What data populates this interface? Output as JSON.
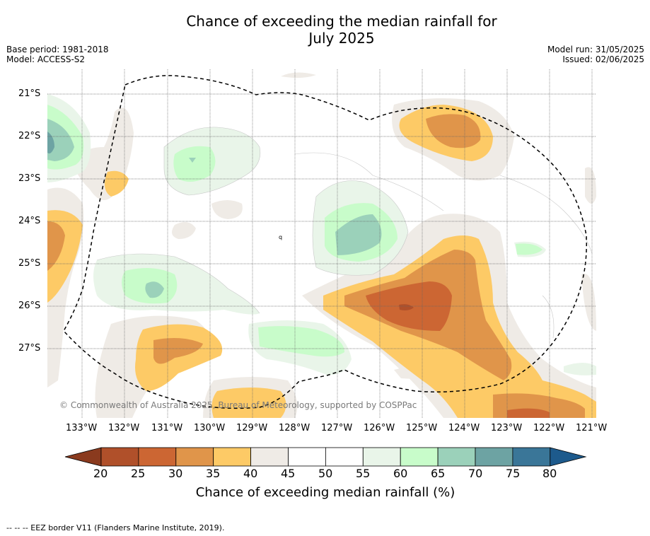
{
  "title_line1": "Chance of exceeding the median rainfall for",
  "title_line2": "July 2025",
  "meta_left": [
    "Base period: 1981-2018",
    "Model: ACCESS-S2"
  ],
  "meta_right": [
    "Model run: 31/05/2025",
    "Issued: 02/06/2025"
  ],
  "lat_labels": [
    "21°S",
    "22°S",
    "23°S",
    "24°S",
    "25°S",
    "26°S",
    "27°S"
  ],
  "lon_labels": [
    "133°W",
    "132°W",
    "131°W",
    "130°W",
    "129°W",
    "128°W",
    "127°W",
    "126°W",
    "125°W",
    "124°W",
    "123°W",
    "122°W",
    "121°W"
  ],
  "copyright": "© Commonwealth of Australia 2025, Bureau of Meteorology, supported by COSPPac",
  "colorbar": {
    "ticks": [
      "20",
      "25",
      "30",
      "35",
      "40",
      "45",
      "50",
      "55",
      "60",
      "65",
      "70",
      "75",
      "80"
    ],
    "colors": [
      "#b0502a",
      "#cc6633",
      "#e0954a",
      "#fdca66",
      "#efebe6",
      "#ffffff",
      "#ffffff",
      "#e9f5e9",
      "#c8fcca",
      "#9bd1ba",
      "#6da3a3",
      "#3a7698"
    ],
    "under_color": "#8a3a1e",
    "over_color": "#1d5a8c",
    "label": "Chance of exceeding median rainfall (%)"
  },
  "footer": "--  --  -- EEZ border V11 (Flanders Marine Institute, 2019)."
}
